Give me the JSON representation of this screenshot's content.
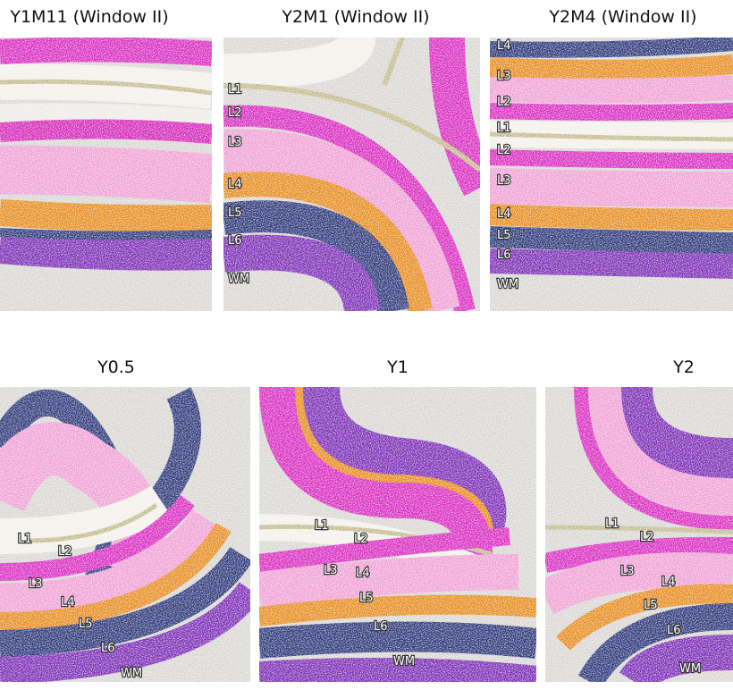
{
  "panels": [
    {
      "title": "Y1M11 (Window II)",
      "labels": []
    },
    {
      "title": "Y2M1 (Window II)",
      "labels": [
        "L1",
        "L2",
        "L3",
        "L4",
        "L5",
        "L6",
        "WM"
      ]
    },
    {
      "title": "Y2M4 (Window II)",
      "labels": [
        "L4",
        "L3",
        "L2",
        "L1",
        "L2",
        "L3",
        "L4",
        "L5",
        "L6",
        "WM"
      ]
    },
    {
      "title": "Y0.5",
      "labels": [
        "L1",
        "L2",
        "L3",
        "L4",
        "L5",
        "L6",
        "WM"
      ]
    },
    {
      "title": "Y1",
      "labels": [
        "L1",
        "L2",
        "L3",
        "L4",
        "L5",
        "L6",
        "WM"
      ]
    },
    {
      "title": "Y2",
      "labels": [
        "L1",
        "L2",
        "L3",
        "L4",
        "L5",
        "L6",
        "WM"
      ]
    }
  ]
}
